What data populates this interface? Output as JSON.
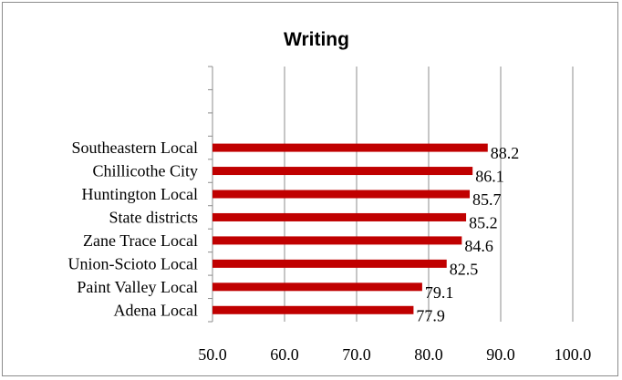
{
  "chart_data": {
    "type": "bar",
    "orientation": "horizontal",
    "title": "Writing",
    "xlabel": "",
    "ylabel": "",
    "categories": [
      "Southeastern Local",
      "Chillicothe City",
      "Huntington Local",
      "State districts",
      "Zane Trace Local",
      "Union-Scioto Local",
      "Paint Valley Local",
      "Adena Local"
    ],
    "values": [
      88.2,
      86.1,
      85.7,
      85.2,
      84.6,
      82.5,
      79.1,
      77.9
    ],
    "value_labels": [
      "88.2",
      "86.1",
      "85.7",
      "85.2",
      "84.6",
      "82.5",
      "79.1",
      "77.9"
    ],
    "xlim": [
      50.0,
      100.0
    ],
    "xticks": [
      50.0,
      60.0,
      70.0,
      80.0,
      90.0,
      100.0
    ],
    "xtick_labels": [
      "50.0",
      "60.0",
      "70.0",
      "80.0",
      "90.0",
      "100.0"
    ],
    "empty_slots_above": 3,
    "grid": "vertical",
    "legend": "none",
    "bar_color": "#c00000",
    "grid_color": "#8c8c8c"
  }
}
